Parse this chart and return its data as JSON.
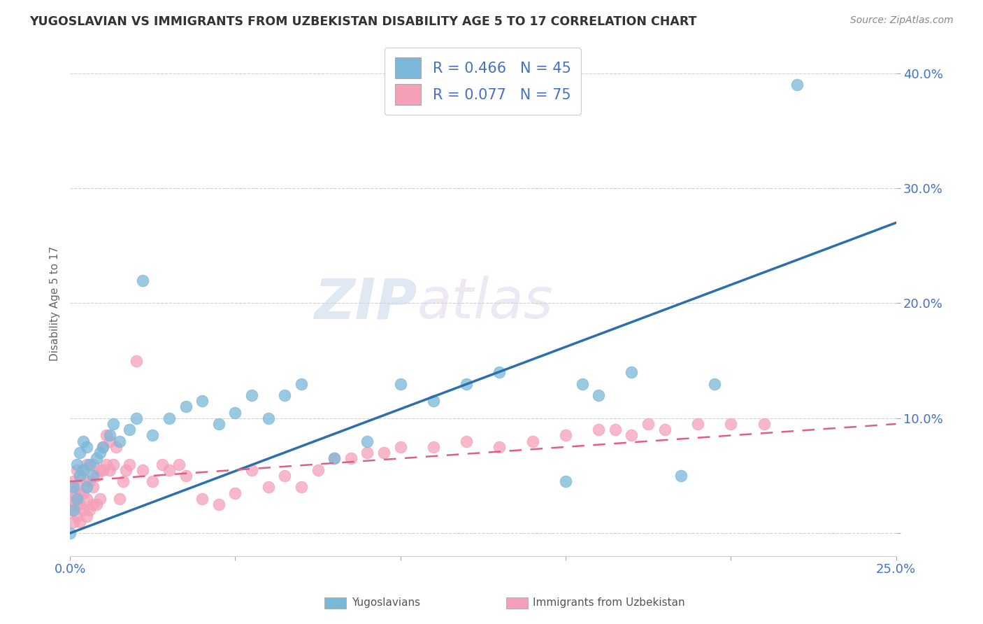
{
  "title": "YUGOSLAVIAN VS IMMIGRANTS FROM UZBEKISTAN DISABILITY AGE 5 TO 17 CORRELATION CHART",
  "source": "Source: ZipAtlas.com",
  "ylabel": "Disability Age 5 to 17",
  "xlabel_blue": "Yugoslavians",
  "xlabel_pink": "Immigrants from Uzbekistan",
  "r_blue": 0.466,
  "n_blue": 45,
  "r_pink": 0.077,
  "n_pink": 75,
  "color_blue": "#7ab8d9",
  "color_pink": "#f5a0b8",
  "color_blue_line": "#2c6fad",
  "color_pink_line": "#e06080",
  "bg_color": "#ffffff",
  "watermark_zip": "ZIP",
  "watermark_atlas": "atlas",
  "xlim": [
    0.0,
    0.25
  ],
  "ylim": [
    -0.02,
    0.42
  ],
  "x_ticks": [
    0.0,
    0.05,
    0.1,
    0.15,
    0.2,
    0.25
  ],
  "x_tick_labels": [
    "0.0%",
    "",
    "",
    "",
    "",
    "25.0%"
  ],
  "y_ticks": [
    0.0,
    0.1,
    0.2,
    0.3,
    0.4
  ],
  "y_tick_labels": [
    "",
    "10.0%",
    "20.0%",
    "30.0%",
    "40.0%"
  ],
  "blue_x": [
    0.0,
    0.001,
    0.001,
    0.002,
    0.002,
    0.003,
    0.003,
    0.004,
    0.004,
    0.005,
    0.005,
    0.006,
    0.007,
    0.008,
    0.009,
    0.01,
    0.012,
    0.013,
    0.015,
    0.018,
    0.02,
    0.022,
    0.025,
    0.03,
    0.035,
    0.04,
    0.045,
    0.05,
    0.055,
    0.06,
    0.065,
    0.07,
    0.08,
    0.09,
    0.1,
    0.11,
    0.12,
    0.13,
    0.15,
    0.155,
    0.16,
    0.17,
    0.185,
    0.195,
    0.22
  ],
  "blue_y": [
    0.0,
    0.02,
    0.04,
    0.03,
    0.06,
    0.05,
    0.07,
    0.055,
    0.08,
    0.04,
    0.075,
    0.06,
    0.05,
    0.065,
    0.07,
    0.075,
    0.085,
    0.095,
    0.08,
    0.09,
    0.1,
    0.22,
    0.085,
    0.1,
    0.11,
    0.115,
    0.095,
    0.105,
    0.12,
    0.1,
    0.12,
    0.13,
    0.065,
    0.08,
    0.13,
    0.115,
    0.13,
    0.14,
    0.045,
    0.13,
    0.12,
    0.14,
    0.05,
    0.13,
    0.39
  ],
  "pink_x": [
    0.0,
    0.0,
    0.001,
    0.001,
    0.001,
    0.001,
    0.002,
    0.002,
    0.002,
    0.002,
    0.003,
    0.003,
    0.003,
    0.003,
    0.004,
    0.004,
    0.004,
    0.005,
    0.005,
    0.005,
    0.005,
    0.006,
    0.006,
    0.007,
    0.007,
    0.007,
    0.008,
    0.008,
    0.009,
    0.009,
    0.01,
    0.01,
    0.011,
    0.011,
    0.012,
    0.012,
    0.013,
    0.014,
    0.015,
    0.016,
    0.017,
    0.018,
    0.02,
    0.022,
    0.025,
    0.028,
    0.03,
    0.033,
    0.035,
    0.04,
    0.045,
    0.05,
    0.055,
    0.06,
    0.065,
    0.07,
    0.075,
    0.08,
    0.085,
    0.09,
    0.095,
    0.1,
    0.11,
    0.12,
    0.13,
    0.14,
    0.15,
    0.16,
    0.165,
    0.17,
    0.175,
    0.18,
    0.19,
    0.2,
    0.21
  ],
  "pink_y": [
    0.02,
    0.03,
    0.01,
    0.025,
    0.035,
    0.045,
    0.015,
    0.025,
    0.04,
    0.055,
    0.01,
    0.025,
    0.035,
    0.05,
    0.02,
    0.035,
    0.055,
    0.015,
    0.03,
    0.045,
    0.06,
    0.02,
    0.045,
    0.025,
    0.04,
    0.06,
    0.025,
    0.05,
    0.03,
    0.055,
    0.055,
    0.075,
    0.06,
    0.085,
    0.055,
    0.08,
    0.06,
    0.075,
    0.03,
    0.045,
    0.055,
    0.06,
    0.15,
    0.055,
    0.045,
    0.06,
    0.055,
    0.06,
    0.05,
    0.03,
    0.025,
    0.035,
    0.055,
    0.04,
    0.05,
    0.04,
    0.055,
    0.065,
    0.065,
    0.07,
    0.07,
    0.075,
    0.075,
    0.08,
    0.075,
    0.08,
    0.085,
    0.09,
    0.09,
    0.085,
    0.095,
    0.09,
    0.095,
    0.095,
    0.095
  ],
  "blue_line_x0": 0.0,
  "blue_line_y0": 0.0,
  "blue_line_x1": 0.25,
  "blue_line_y1": 0.27,
  "pink_line_x0": 0.0,
  "pink_line_y0": 0.045,
  "pink_line_x1": 0.25,
  "pink_line_y1": 0.095
}
